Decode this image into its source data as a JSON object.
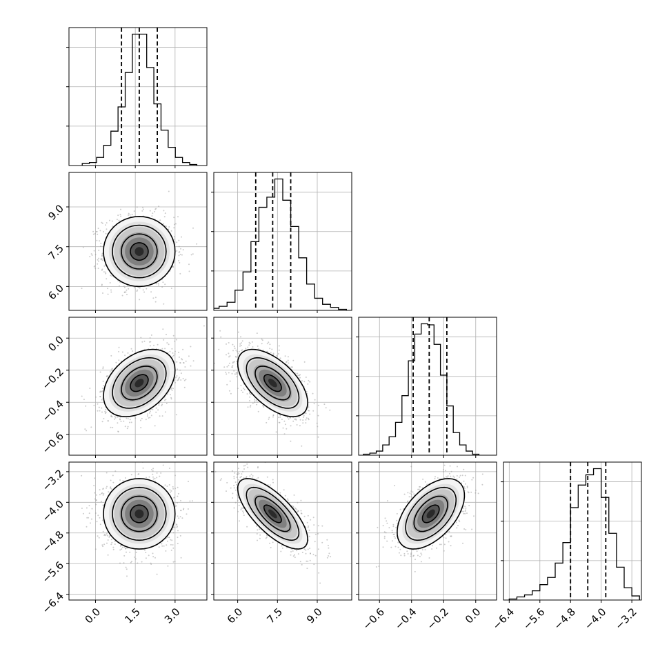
{
  "chart_data": {
    "type": "corner",
    "parameters": [
      {
        "ticks": [
          0.0,
          1.5,
          3.0
        ],
        "tick_labels": [
          "0.0",
          "1.5",
          "3.0"
        ],
        "range": [
          -1.0,
          4.2
        ],
        "quantiles": [
          0.98,
          1.65,
          2.33
        ],
        "hist_bins": [
          -0.5,
          -0.23,
          0.04,
          0.31,
          0.58,
          0.85,
          1.12,
          1.39,
          1.66,
          1.93,
          2.2,
          2.47,
          2.74,
          3.01,
          3.28,
          3.55,
          3.82
        ],
        "hist_counts": [
          2,
          3,
          8,
          20,
          34,
          58,
          92,
          130,
          130,
          97,
          61,
          35,
          18,
          8,
          3,
          1
        ]
      },
      {
        "ticks": [
          6.0,
          7.5,
          9.0
        ],
        "tick_labels": [
          "6.0",
          "7.5",
          "9.0"
        ],
        "range": [
          5.1,
          10.3
        ],
        "quantiles": [
          6.68,
          7.32,
          8.0
        ],
        "hist_bins": [
          5.0,
          5.3,
          5.6,
          5.9,
          6.2,
          6.5,
          6.8,
          7.1,
          7.4,
          7.7,
          8.0,
          8.3,
          8.6,
          8.9,
          9.2,
          9.5,
          9.8,
          10.1
        ],
        "hist_counts": [
          2,
          4,
          8,
          20,
          38,
          68,
          102,
          112,
          130,
          109,
          83,
          52,
          26,
          12,
          6,
          3,
          1
        ]
      },
      {
        "ticks": [
          -0.6,
          -0.4,
          -0.2,
          0.0
        ],
        "tick_labels": [
          "−0.6",
          "−0.4",
          "−0.2",
          "0.0"
        ],
        "range": [
          -0.73,
          0.13
        ],
        "quantiles": [
          -0.39,
          -0.29,
          -0.18
        ],
        "hist_bins": [
          -0.7,
          -0.66,
          -0.62,
          -0.58,
          -0.54,
          -0.5,
          -0.46,
          -0.42,
          -0.38,
          -0.34,
          -0.3,
          -0.26,
          -0.22,
          -0.18,
          -0.14,
          -0.1,
          -0.06,
          -0.02,
          0.02
        ],
        "hist_counts": [
          1,
          2,
          4,
          10,
          18,
          32,
          58,
          92,
          118,
          128,
          127,
          108,
          78,
          48,
          22,
          10,
          4,
          1
        ]
      },
      {
        "ticks": [
          -6.4,
          -5.6,
          -4.8,
          -4.0,
          -3.2
        ],
        "tick_labels": [
          "−6.4",
          "−5.6",
          "−4.8",
          "−4.0",
          "−3.2"
        ],
        "range": [
          -6.55,
          -2.95
        ],
        "quantiles": [
          -4.8,
          -4.35,
          -3.88
        ],
        "hist_bins": [
          -6.4,
          -6.2,
          -6.0,
          -5.8,
          -5.6,
          -5.4,
          -5.2,
          -5.0,
          -4.8,
          -4.6,
          -4.4,
          -4.2,
          -4.0,
          -3.8,
          -3.6,
          -3.4,
          -3.2,
          -3.0
        ],
        "hist_counts": [
          1,
          3,
          5,
          9,
          15,
          22,
          36,
          56,
          90,
          112,
          122,
          128,
          100,
          65,
          32,
          12,
          4
        ]
      }
    ],
    "peaks": [
      1.65,
      7.32,
      -0.28,
      -4.3
    ],
    "correlations": [
      {
        "i": 1,
        "j": 0,
        "rho": 0.0
      },
      {
        "i": 2,
        "j": 0,
        "rho": 0.38
      },
      {
        "i": 2,
        "j": 1,
        "rho": -0.58
      },
      {
        "i": 3,
        "j": 0,
        "rho": 0.0
      },
      {
        "i": 3,
        "j": 1,
        "rho": -0.72
      },
      {
        "i": 3,
        "j": 2,
        "rho": 0.52
      }
    ],
    "contour_levels_sigma": [
      0.5,
      1.0,
      1.5,
      2.0
    ],
    "grid": true,
    "colors": {
      "hist": "#000000",
      "points": "#a0a0a0",
      "grid": "#b0b0b0",
      "frame": "#000000"
    }
  }
}
